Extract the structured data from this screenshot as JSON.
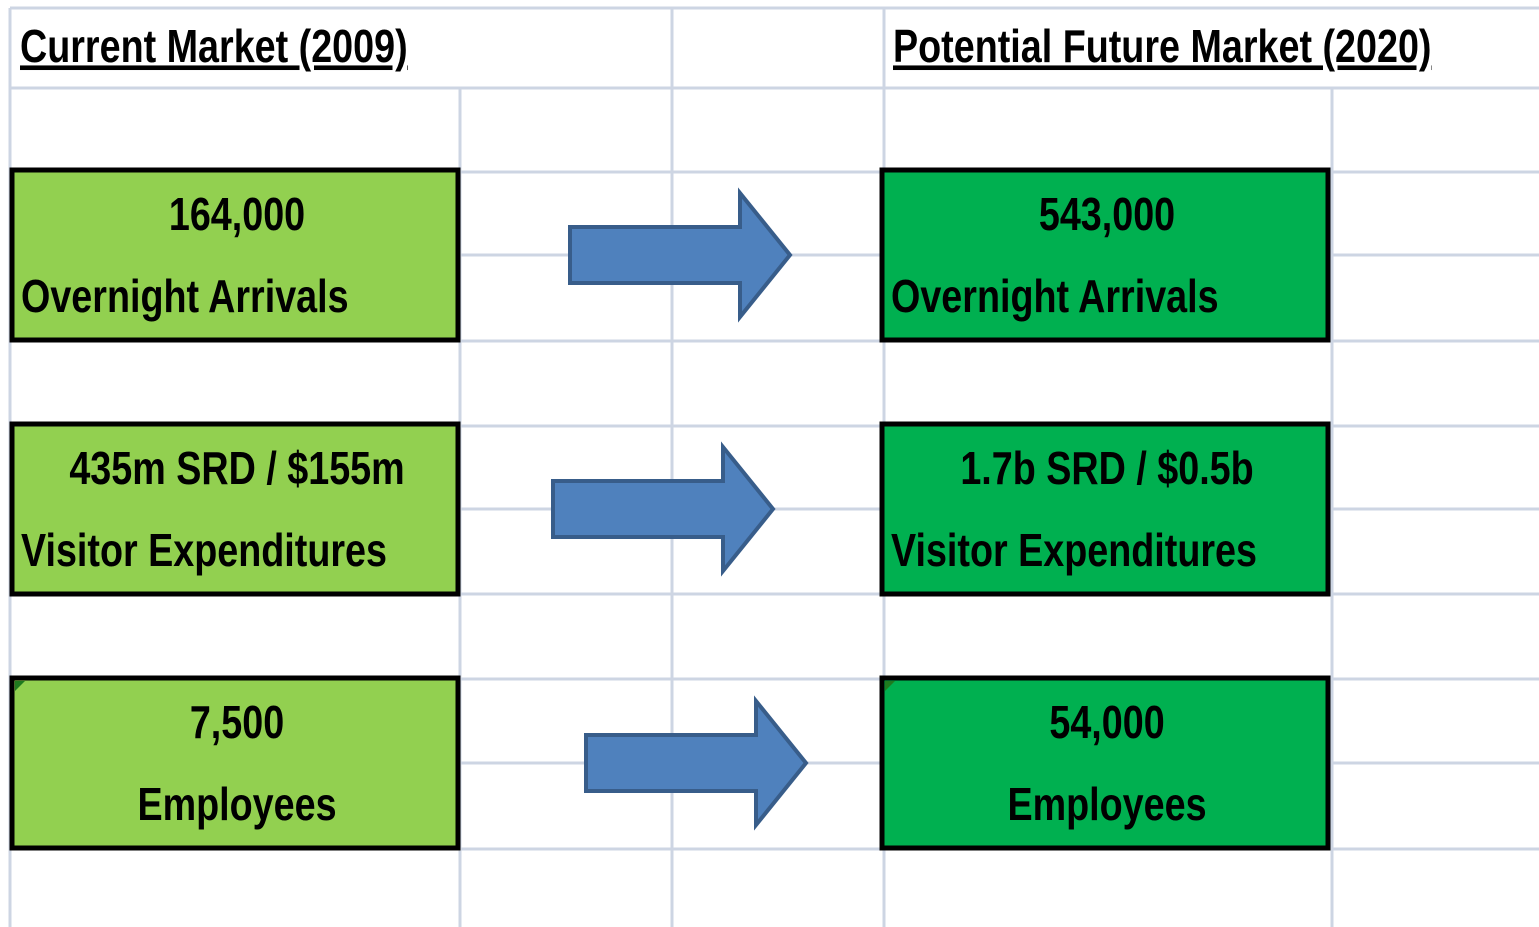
{
  "headers": {
    "current": "Current Market (2009)",
    "future": "Potential Future Market (2020)"
  },
  "rows": [
    {
      "current": {
        "value": "164,000",
        "label": "Overnight Arrivals"
      },
      "future": {
        "value": "543,000",
        "label": "Overnight Arrivals"
      }
    },
    {
      "current": {
        "value": "435m SRD / $155m",
        "label": "Visitor Expenditures"
      },
      "future": {
        "value": "1.7b SRD / $0.5b",
        "label": "Visitor Expenditures"
      }
    },
    {
      "current": {
        "value": "7,500",
        "label": "Employees"
      },
      "future": {
        "value": "54,000",
        "label": "Employees"
      }
    }
  ]
}
